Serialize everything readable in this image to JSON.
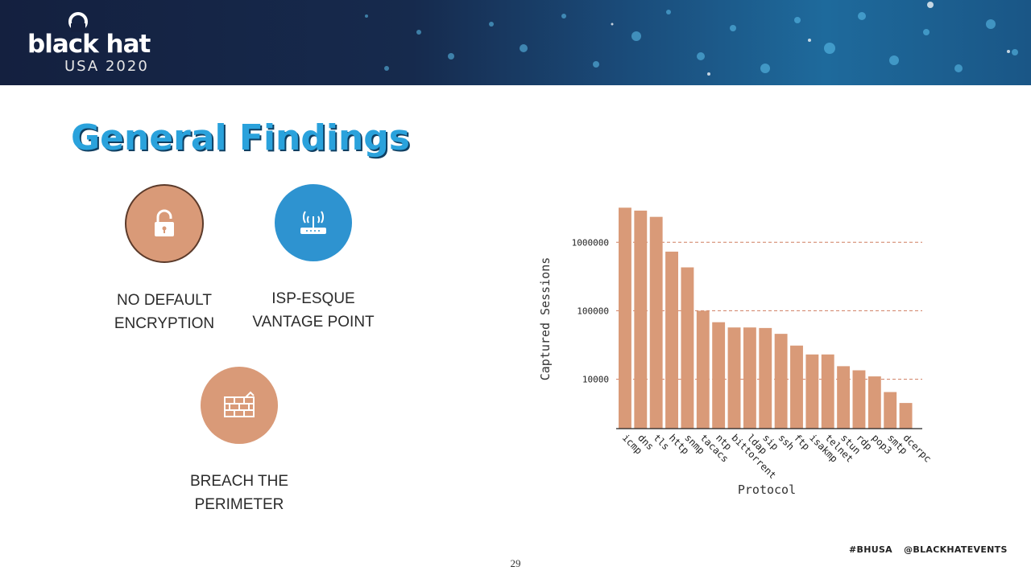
{
  "header": {
    "logo_text": "black hat",
    "logo_subtext": "USA 2020"
  },
  "title": "General Findings",
  "findings": [
    {
      "line1": "NO DEFAULT",
      "line2": "ENCRYPTION",
      "icon": "padlock-icon",
      "color": "#d99a78"
    },
    {
      "line1": "ISP-ESQUE",
      "line2": "VANTAGE POINT",
      "icon": "wifi-router-icon",
      "color": "#2e93d0"
    },
    {
      "line1": "BREACH THE",
      "line2": "PERIMETER",
      "icon": "brick-wall-icon",
      "color": "#d99a78"
    }
  ],
  "chart_data": {
    "type": "bar",
    "categories": [
      "icmp",
      "dns",
      "tls",
      "http",
      "snmp",
      "tacacs",
      "ntp",
      "bittorrent",
      "ldap",
      "sip",
      "ssh",
      "ftp",
      "isakmp",
      "telnet",
      "stun",
      "rdp",
      "pop3",
      "smtp",
      "dcerpc"
    ],
    "values": [
      3200000,
      2900000,
      2350000,
      730000,
      430000,
      100000,
      68000,
      57000,
      57000,
      56000,
      46000,
      31000,
      23000,
      23000,
      15500,
      13500,
      11000,
      6500,
      4500
    ],
    "title": "",
    "xlabel": "Protocol",
    "ylabel": "Captured Sessions",
    "yscale": "log",
    "ylim": [
      1900,
      4000000
    ],
    "yticks": [
      10000,
      100000,
      1000000
    ],
    "ytick_labels": [
      "10000",
      "100000",
      "1000000"
    ],
    "grid": "horizontal dashed",
    "bar_color": "#d99a78",
    "grid_color": "#c0522d"
  },
  "footer": {
    "page_number": "29",
    "hashtag1": "#BHUSA",
    "hashtag2": "@BLACKHATEVENTS"
  }
}
